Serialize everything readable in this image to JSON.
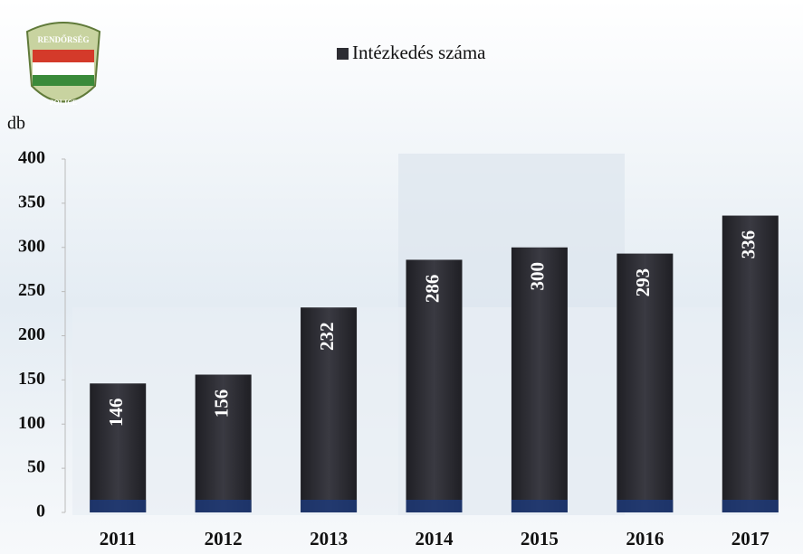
{
  "chart_data": {
    "type": "bar",
    "legend": "Intézkedés száma",
    "ylabel": "db",
    "logo_texts": [
      "RENDŐRSÉG",
      "POLICE"
    ],
    "categories": [
      "2011",
      "2012",
      "2013",
      "2014",
      "2015",
      "2016",
      "2017"
    ],
    "values": [
      146,
      156,
      232,
      286,
      300,
      293,
      336
    ],
    "color": "#2d2d33",
    "ylim": [
      0,
      400
    ],
    "yticks": [
      0,
      50,
      100,
      150,
      200,
      250,
      300,
      350,
      400
    ]
  }
}
